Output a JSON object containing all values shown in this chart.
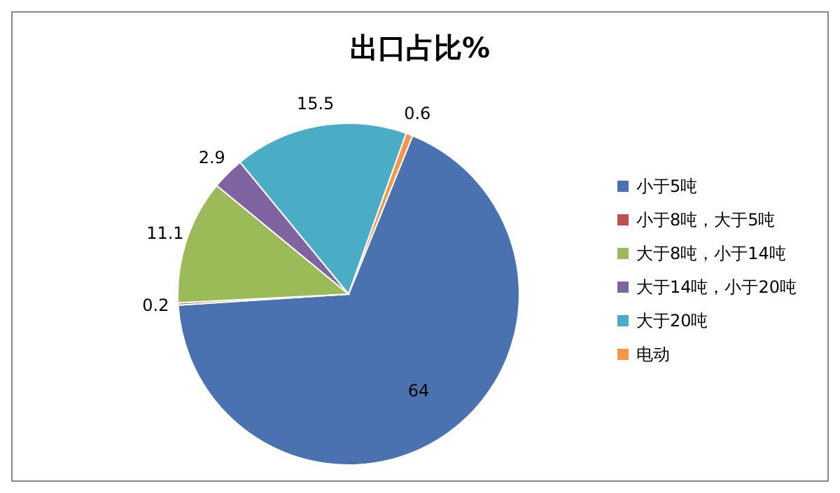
{
  "chart_data": {
    "type": "pie",
    "title": "出口占比%",
    "categories": [
      "小于5吨",
      "小于8吨，大于5吨",
      "大于8吨，小于14吨",
      "大于14吨，小于20吨",
      "大于20吨",
      "电动"
    ],
    "values": [
      64,
      0.2,
      11.1,
      2.9,
      15.5,
      0.6
    ],
    "colors": [
      "#4a72b0",
      "#c0504d",
      "#9bbb59",
      "#8064a2",
      "#4bacc6",
      "#f79646"
    ],
    "data_labels": true,
    "legend": "right"
  }
}
